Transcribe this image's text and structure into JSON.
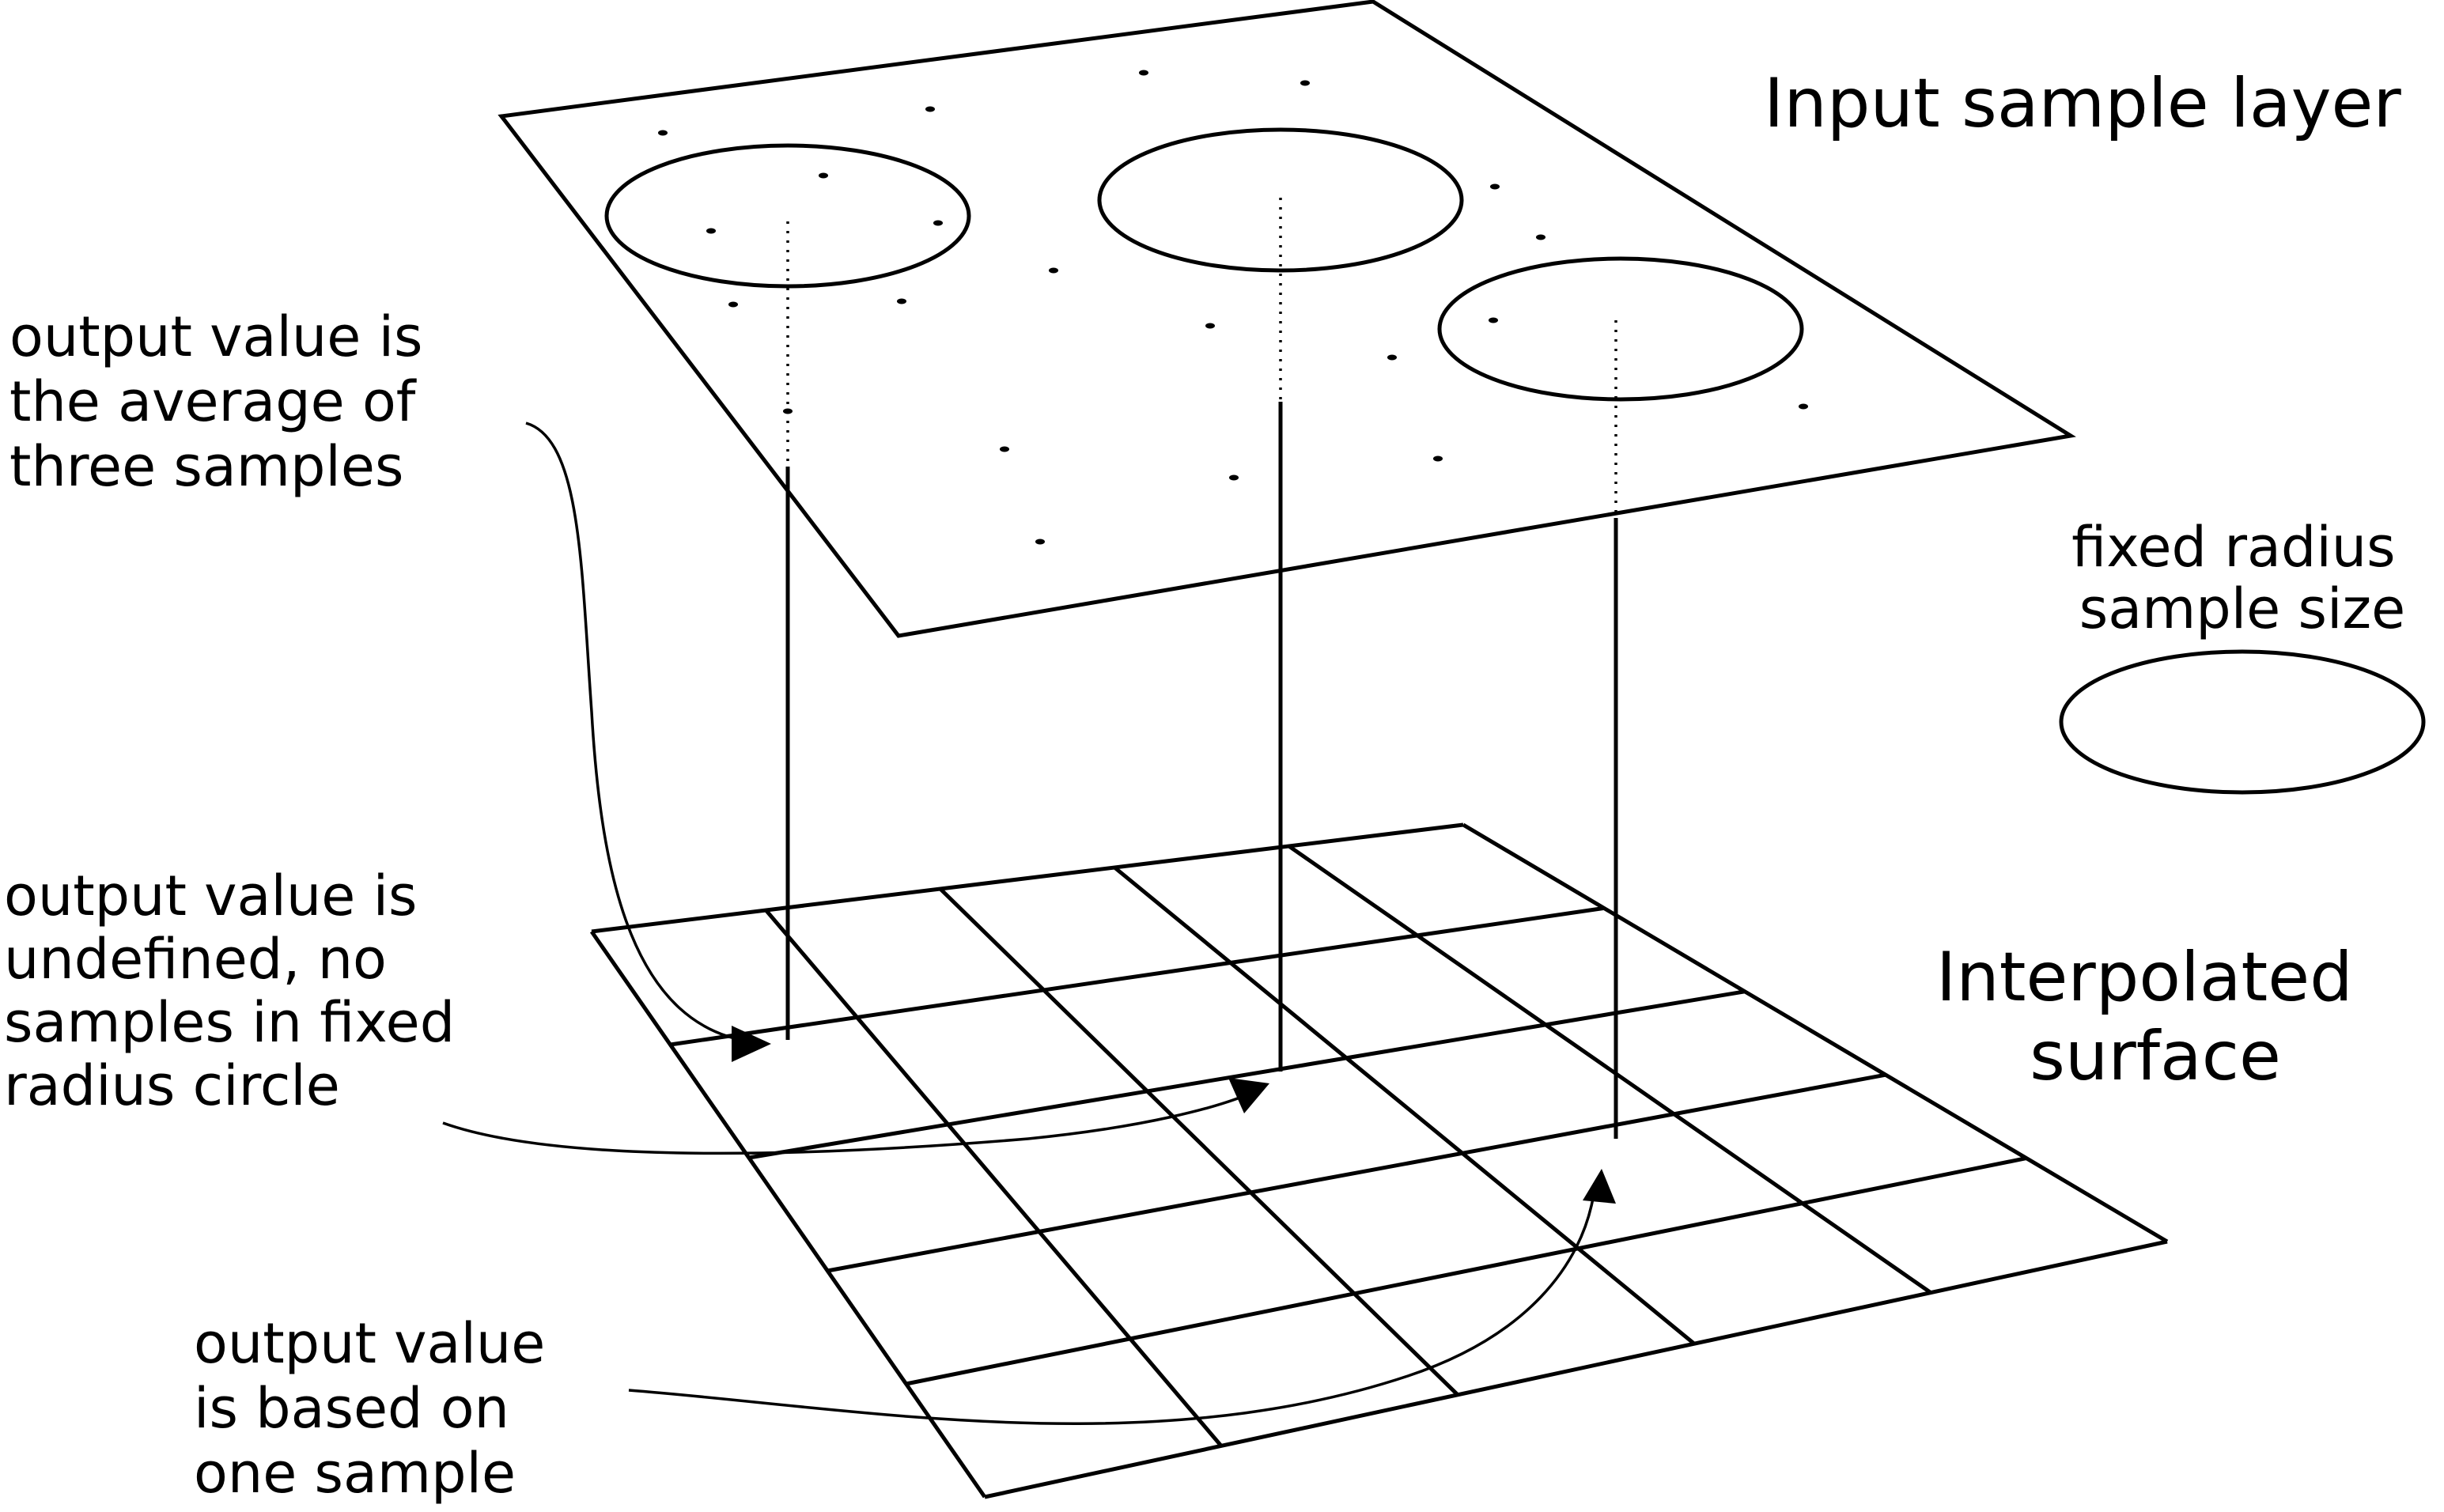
{
  "diagram": {
    "labels": {
      "input_layer": "Input sample layer",
      "radius_legend": [
        "fixed radius",
        "sample size"
      ],
      "interpolated_surface": [
        "Interpolated",
        "surface"
      ],
      "average_of_three": [
        "output value is",
        "the average of",
        "three samples"
      ],
      "undefined": [
        "output value is",
        "undefined, no",
        "samples in fixed",
        "radius circle"
      ],
      "one_sample": [
        "output value",
        "is based on",
        "one sample"
      ]
    },
    "input_layer": {
      "sample_points_count": 21,
      "sample_circles_count": 3
    },
    "interpolated_surface": {
      "grid_rows": 5,
      "grid_columns": 5
    },
    "colors": {
      "line": "#000000",
      "background": "#ffffff"
    }
  }
}
